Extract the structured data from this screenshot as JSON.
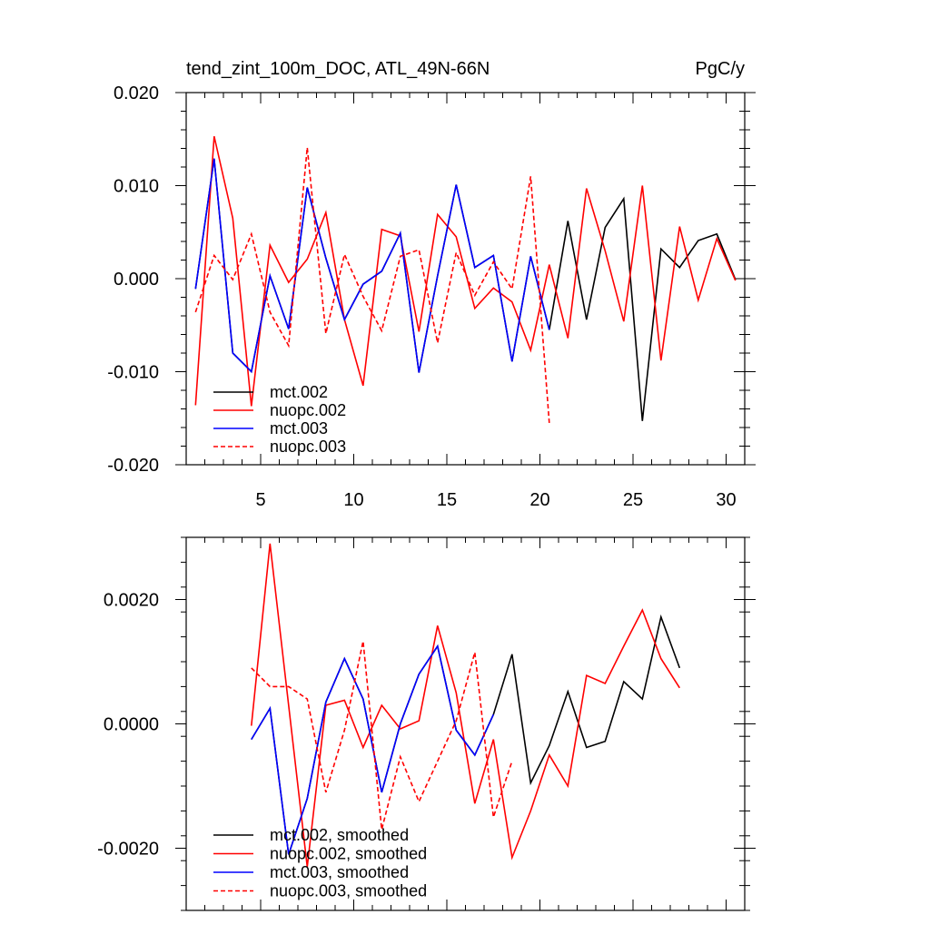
{
  "chart_data": [
    {
      "type": "line",
      "title_left": "tend_zint_100m_DOC, ATL_49N-66N",
      "title_right": "PgC/y",
      "xlabel": "",
      "ylabel": "",
      "xlim": [
        1,
        31
      ],
      "ylim": [
        -0.02,
        0.02
      ],
      "x_ticks": [
        5,
        10,
        15,
        20,
        25,
        30
      ],
      "x_tick_labels": [
        "5",
        "10",
        "15",
        "20",
        "25",
        "30"
      ],
      "y_ticks": [
        -0.02,
        -0.01,
        0.0,
        0.01,
        0.02
      ],
      "y_tick_labels": [
        "-0.020",
        "-0.010",
        "0.000",
        "0.010",
        "0.020"
      ],
      "legend_position": "bottom-left",
      "series": [
        {
          "name": "mct.002",
          "color": "#000000",
          "dash": "solid",
          "x": [
            1.5,
            2.5,
            3.5,
            4.5,
            5.5,
            6.5,
            7.5,
            8.5,
            9.5,
            10.5,
            11.5,
            12.5,
            13.5,
            14.5,
            15.5,
            16.5,
            17.5,
            18.5,
            19.5,
            20.5,
            21.5,
            22.5,
            23.5,
            24.5,
            25.5,
            26.5,
            27.5,
            28.5,
            29.5,
            30.5
          ],
          "values": [
            -0.0011,
            0.0129,
            -0.008,
            -0.01,
            0.0003,
            -0.0054,
            0.0098,
            0.0022,
            -0.0044,
            -0.0006,
            0.0008,
            0.0049,
            -0.0101,
            0.0003,
            0.0101,
            0.0012,
            0.0025,
            -0.0089,
            0.0024,
            -0.0055,
            0.0062,
            -0.0044,
            0.0055,
            0.0086,
            -0.0153,
            0.0032,
            0.0012,
            0.0041,
            0.0048,
            -0.0001
          ]
        },
        {
          "name": "nuopc.002",
          "color": "#ff0000",
          "dash": "solid",
          "x": [
            1.5,
            2.5,
            3.5,
            4.5,
            5.5,
            6.5,
            7.5,
            8.5,
            9.5,
            10.5,
            11.5,
            12.5,
            13.5,
            14.5,
            15.5,
            16.5,
            17.5,
            18.5,
            19.5,
            20.5,
            21.5,
            22.5,
            23.5,
            24.5,
            25.5,
            26.5,
            27.5,
            28.5,
            29.5,
            30.5
          ],
          "values": [
            -0.0136,
            0.0153,
            0.0065,
            -0.0137,
            0.0036,
            -0.0004,
            0.0021,
            0.0071,
            -0.0044,
            -0.0115,
            0.0053,
            0.0046,
            -0.0057,
            0.0069,
            0.0045,
            -0.0032,
            -0.001,
            -0.0025,
            -0.0077,
            0.0015,
            -0.0064,
            0.0097,
            0.003,
            -0.0046,
            0.01,
            -0.0088,
            0.0056,
            -0.0023,
            0.0043,
            -0.0002
          ]
        },
        {
          "name": "mct.003",
          "color": "#0000ff",
          "dash": "solid",
          "x": [
            1.5,
            2.5,
            3.5,
            4.5,
            5.5,
            6.5,
            7.5,
            8.5,
            9.5,
            10.5,
            11.5,
            12.5,
            13.5,
            14.5,
            15.5,
            16.5,
            17.5,
            18.5,
            19.5,
            20.5
          ],
          "values": [
            -0.0011,
            0.0129,
            -0.008,
            -0.01,
            0.0003,
            -0.0054,
            0.0098,
            0.0022,
            -0.0044,
            -0.0006,
            0.0008,
            0.0049,
            -0.0101,
            0.0003,
            0.0101,
            0.0012,
            0.0025,
            -0.0089,
            0.0024,
            -0.0055
          ]
        },
        {
          "name": "nuopc.003",
          "color": "#ff0000",
          "dash": "dashed",
          "x": [
            1.5,
            2.5,
            3.5,
            4.5,
            5.5,
            6.5,
            7.5,
            8.5,
            9.5,
            10.5,
            11.5,
            12.5,
            13.5,
            14.5,
            15.5,
            16.5,
            17.5,
            18.5,
            19.5,
            20.5
          ],
          "values": [
            -0.0036,
            0.0025,
            -0.0001,
            0.0048,
            -0.0036,
            -0.0072,
            0.0141,
            -0.0059,
            0.0026,
            -0.0019,
            -0.0056,
            0.0024,
            0.0031,
            -0.0069,
            0.0028,
            -0.0018,
            0.0018,
            -0.0011,
            0.011,
            -0.0155
          ]
        }
      ]
    },
    {
      "type": "line",
      "title_left": "",
      "title_right": "",
      "xlabel": "",
      "ylabel": "",
      "xlim": [
        1,
        31
      ],
      "ylim": [
        -0.003,
        0.003
      ],
      "x_ticks": [
        5,
        10,
        15,
        20,
        25,
        30
      ],
      "x_tick_labels": [],
      "y_ticks": [
        -0.002,
        0.0,
        0.002
      ],
      "y_tick_labels": [
        "-0.0020",
        "0.0000",
        "0.0020"
      ],
      "legend_position": "bottom-left",
      "series": [
        {
          "name": "mct.002, smoothed",
          "color": "#000000",
          "dash": "solid",
          "x": [
            4.5,
            5.5,
            6.5,
            7.5,
            8.5,
            9.5,
            10.5,
            11.5,
            12.5,
            13.5,
            14.5,
            15.5,
            16.5,
            17.5,
            18.5,
            19.5,
            20.5,
            21.5,
            22.5,
            23.5,
            24.5,
            25.5,
            26.5,
            27.5
          ],
          "values": [
            -0.00025,
            0.00025,
            -0.0021,
            -0.0012,
            0.00035,
            0.00105,
            0.0004,
            -0.0011,
            -0.0,
            0.0008,
            0.00125,
            -0.0001,
            -0.0005,
            0.00015,
            0.00112,
            -0.00095,
            -0.00035,
            0.00052,
            -0.00038,
            -0.00028,
            0.00068,
            0.0004,
            0.00172,
            0.0009
          ]
        },
        {
          "name": "nuopc.002, smoothed",
          "color": "#ff0000",
          "dash": "solid",
          "x": [
            4.5,
            5.5,
            6.5,
            7.5,
            8.5,
            9.5,
            10.5,
            11.5,
            12.5,
            13.5,
            14.5,
            15.5,
            16.5,
            17.5,
            18.5,
            19.5,
            20.5,
            21.5,
            22.5,
            23.5,
            24.5,
            25.5,
            26.5,
            27.5
          ],
          "values": [
            -3e-05,
            0.0029,
            0.0003,
            -0.0023,
            0.0003,
            0.00038,
            -0.00038,
            0.0003,
            -8e-05,
            5e-05,
            0.00158,
            0.0005,
            -0.00128,
            -0.00025,
            -0.00215,
            -0.0014,
            -0.0005,
            -0.001,
            0.00078,
            0.00065,
            0.00125,
            0.00183,
            0.00105,
            0.00058
          ]
        },
        {
          "name": "mct.003, smoothed",
          "color": "#0000ff",
          "dash": "solid",
          "x": [
            4.5,
            5.5,
            6.5,
            7.5,
            8.5,
            9.5,
            10.5,
            11.5,
            12.5,
            13.5,
            14.5,
            15.5,
            16.5,
            17.5
          ],
          "values": [
            -0.00025,
            0.00025,
            -0.0021,
            -0.0012,
            0.00035,
            0.00105,
            0.0004,
            -0.0011,
            -0.0,
            0.0008,
            0.00125,
            -0.0001,
            -0.0005,
            0.00015
          ]
        },
        {
          "name": "nuopc.003, smoothed",
          "color": "#ff0000",
          "dash": "dashed",
          "x": [
            4.5,
            5.5,
            6.5,
            7.5,
            8.5,
            9.5,
            10.5,
            11.5,
            12.5,
            13.5,
            14.5,
            15.5,
            16.5,
            17.5,
            18.5
          ],
          "values": [
            0.0009,
            0.0006,
            0.0006,
            0.0004,
            -0.0011,
            -0.0001,
            0.00133,
            -0.0017,
            -0.00053,
            -0.00125,
            -0.0006,
            5e-05,
            0.00115,
            -0.0015,
            -0.0006
          ]
        }
      ]
    }
  ]
}
